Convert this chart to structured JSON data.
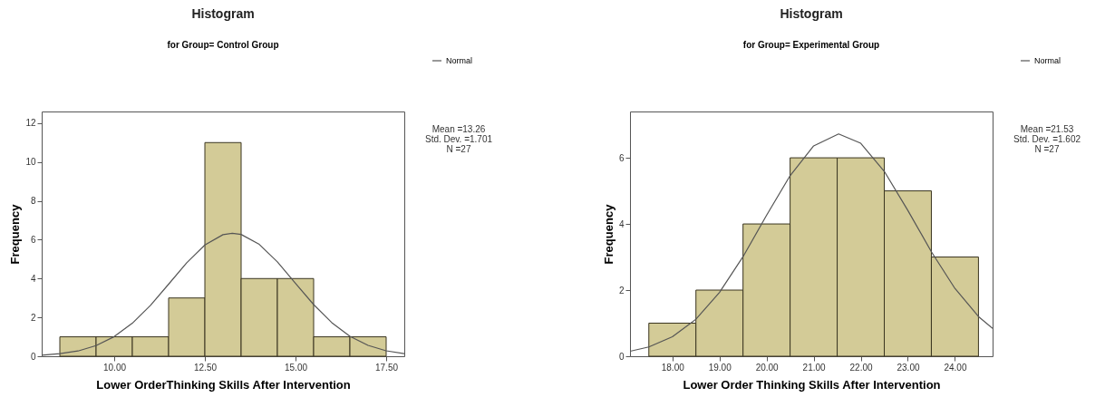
{
  "chart_data": [
    {
      "type": "histogram",
      "title": "Histogram",
      "subtitle": "for Group= Control Group",
      "xlabel": "Lower OrderThinking Skills After Intervention",
      "ylabel": "Frequency",
      "bins": [
        8.5,
        9.5,
        10.5,
        11.5,
        12.5,
        13.5,
        14.5,
        15.5,
        16.5,
        17.5
      ],
      "series": [
        {
          "color": "#d3cb97",
          "values": [
            1,
            1,
            1,
            3,
            11,
            4,
            4,
            1,
            1
          ]
        },
        {
          "type": "line",
          "name": "Normal",
          "color": "#555555",
          "x": [
            8,
            8.5,
            9,
            9.5,
            10,
            10.5,
            11,
            11.5,
            12,
            12.5,
            13,
            13.26,
            13.5,
            14,
            14.5,
            15,
            15.5,
            16,
            16.5,
            17,
            17.5,
            18
          ],
          "values": [
            0.05,
            0.13,
            0.27,
            0.55,
            1.01,
            1.7,
            2.62,
            3.71,
            4.81,
            5.73,
            6.26,
            6.33,
            6.27,
            5.76,
            4.86,
            3.75,
            2.66,
            1.73,
            1.03,
            0.56,
            0.28,
            0.13
          ]
        }
      ],
      "xlim": [
        8.0,
        18.0
      ],
      "xticks": [
        {
          "value": 10,
          "label": "10.00"
        },
        {
          "value": 12.5,
          "label": "12.50"
        },
        {
          "value": 15,
          "label": "15.00"
        },
        {
          "value": 17.5,
          "label": "17.50"
        }
      ],
      "ylim": [
        0,
        12.6
      ],
      "yticks": [
        0,
        2,
        4,
        6,
        8,
        10,
        12
      ],
      "annotations": [
        "Mean =13.26",
        "Std. Dev. =1.701",
        "N =27"
      ],
      "legend": "top right",
      "grid": false,
      "marker": "none",
      "line_style": "solid"
    },
    {
      "type": "histogram",
      "title": "Histogram",
      "subtitle": "for Group= Experimental Group",
      "xlabel": "Lower Order Thinking Skills After Intervention",
      "ylabel": "Frequency",
      "bins": [
        17.5,
        18.5,
        19.5,
        20.5,
        21.5,
        22.5,
        23.5,
        24.5
      ],
      "series": [
        {
          "color": "#d3cb97",
          "values": [
            1,
            2,
            4,
            6,
            6,
            5,
            3
          ]
        },
        {
          "type": "line",
          "name": "Normal",
          "color": "#555555",
          "x": [
            17.1,
            17.5,
            18,
            18.5,
            19,
            19.5,
            20,
            20.5,
            21,
            21.53,
            22,
            22.5,
            23,
            23.5,
            24,
            24.5,
            24.8
          ],
          "values": [
            0.15,
            0.28,
            0.59,
            1.12,
            1.93,
            3.01,
            4.26,
            5.46,
            6.36,
            6.72,
            6.44,
            5.59,
            4.41,
            3.16,
            2.05,
            1.2,
            0.84
          ]
        }
      ],
      "xlim": [
        17.1,
        24.8
      ],
      "xticks": [
        {
          "value": 18,
          "label": "18.00"
        },
        {
          "value": 19,
          "label": "19.00"
        },
        {
          "value": 20,
          "label": "20.00"
        },
        {
          "value": 21,
          "label": "21.00"
        },
        {
          "value": 22,
          "label": "22.00"
        },
        {
          "value": 23,
          "label": "23.00"
        },
        {
          "value": 24,
          "label": "24.00"
        }
      ],
      "ylim": [
        0,
        7.4
      ],
      "yticks": [
        0,
        2,
        4,
        6
      ],
      "annotations": [
        "Mean =21.53",
        "Std. Dev. =1.602",
        "N =27"
      ],
      "legend": "top right",
      "grid": false,
      "marker": "none",
      "line_style": "solid"
    }
  ]
}
